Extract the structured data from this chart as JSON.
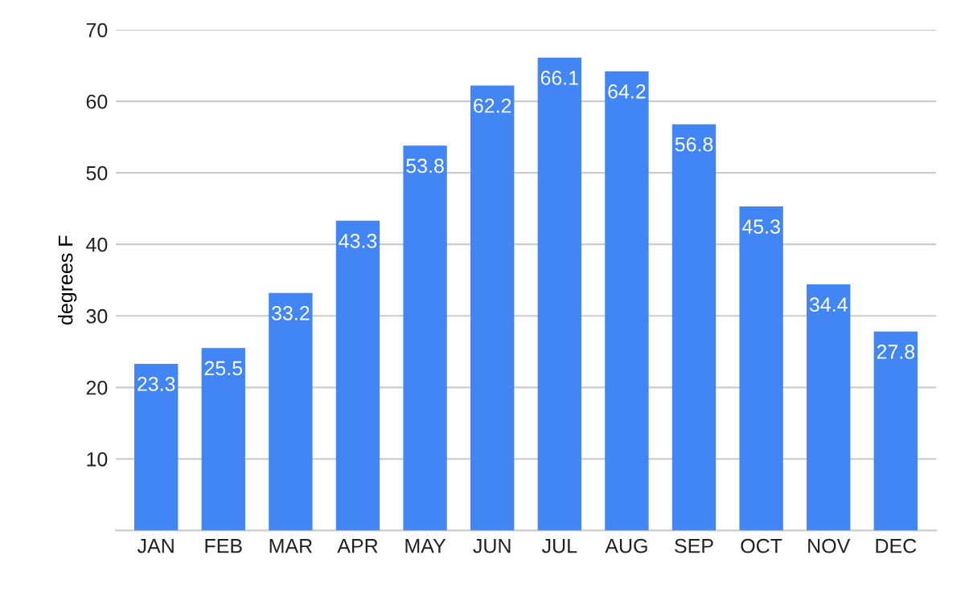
{
  "chart_data": {
    "type": "bar",
    "ylabel": "degrees F",
    "categories": [
      "JAN",
      "FEB",
      "MAR",
      "APR",
      "MAY",
      "JUN",
      "JUL",
      "AUG",
      "SEP",
      "OCT",
      "NOV",
      "DEC"
    ],
    "values": [
      23.3,
      25.5,
      33.2,
      43.3,
      53.8,
      62.2,
      66.1,
      64.2,
      56.8,
      45.3,
      34.4,
      27.8
    ],
    "color": "#4285f4",
    "ylim": [
      0,
      70
    ],
    "yticks": [
      10,
      20,
      30,
      40,
      50,
      60,
      70
    ],
    "grid": "y",
    "data_labels": true
  }
}
